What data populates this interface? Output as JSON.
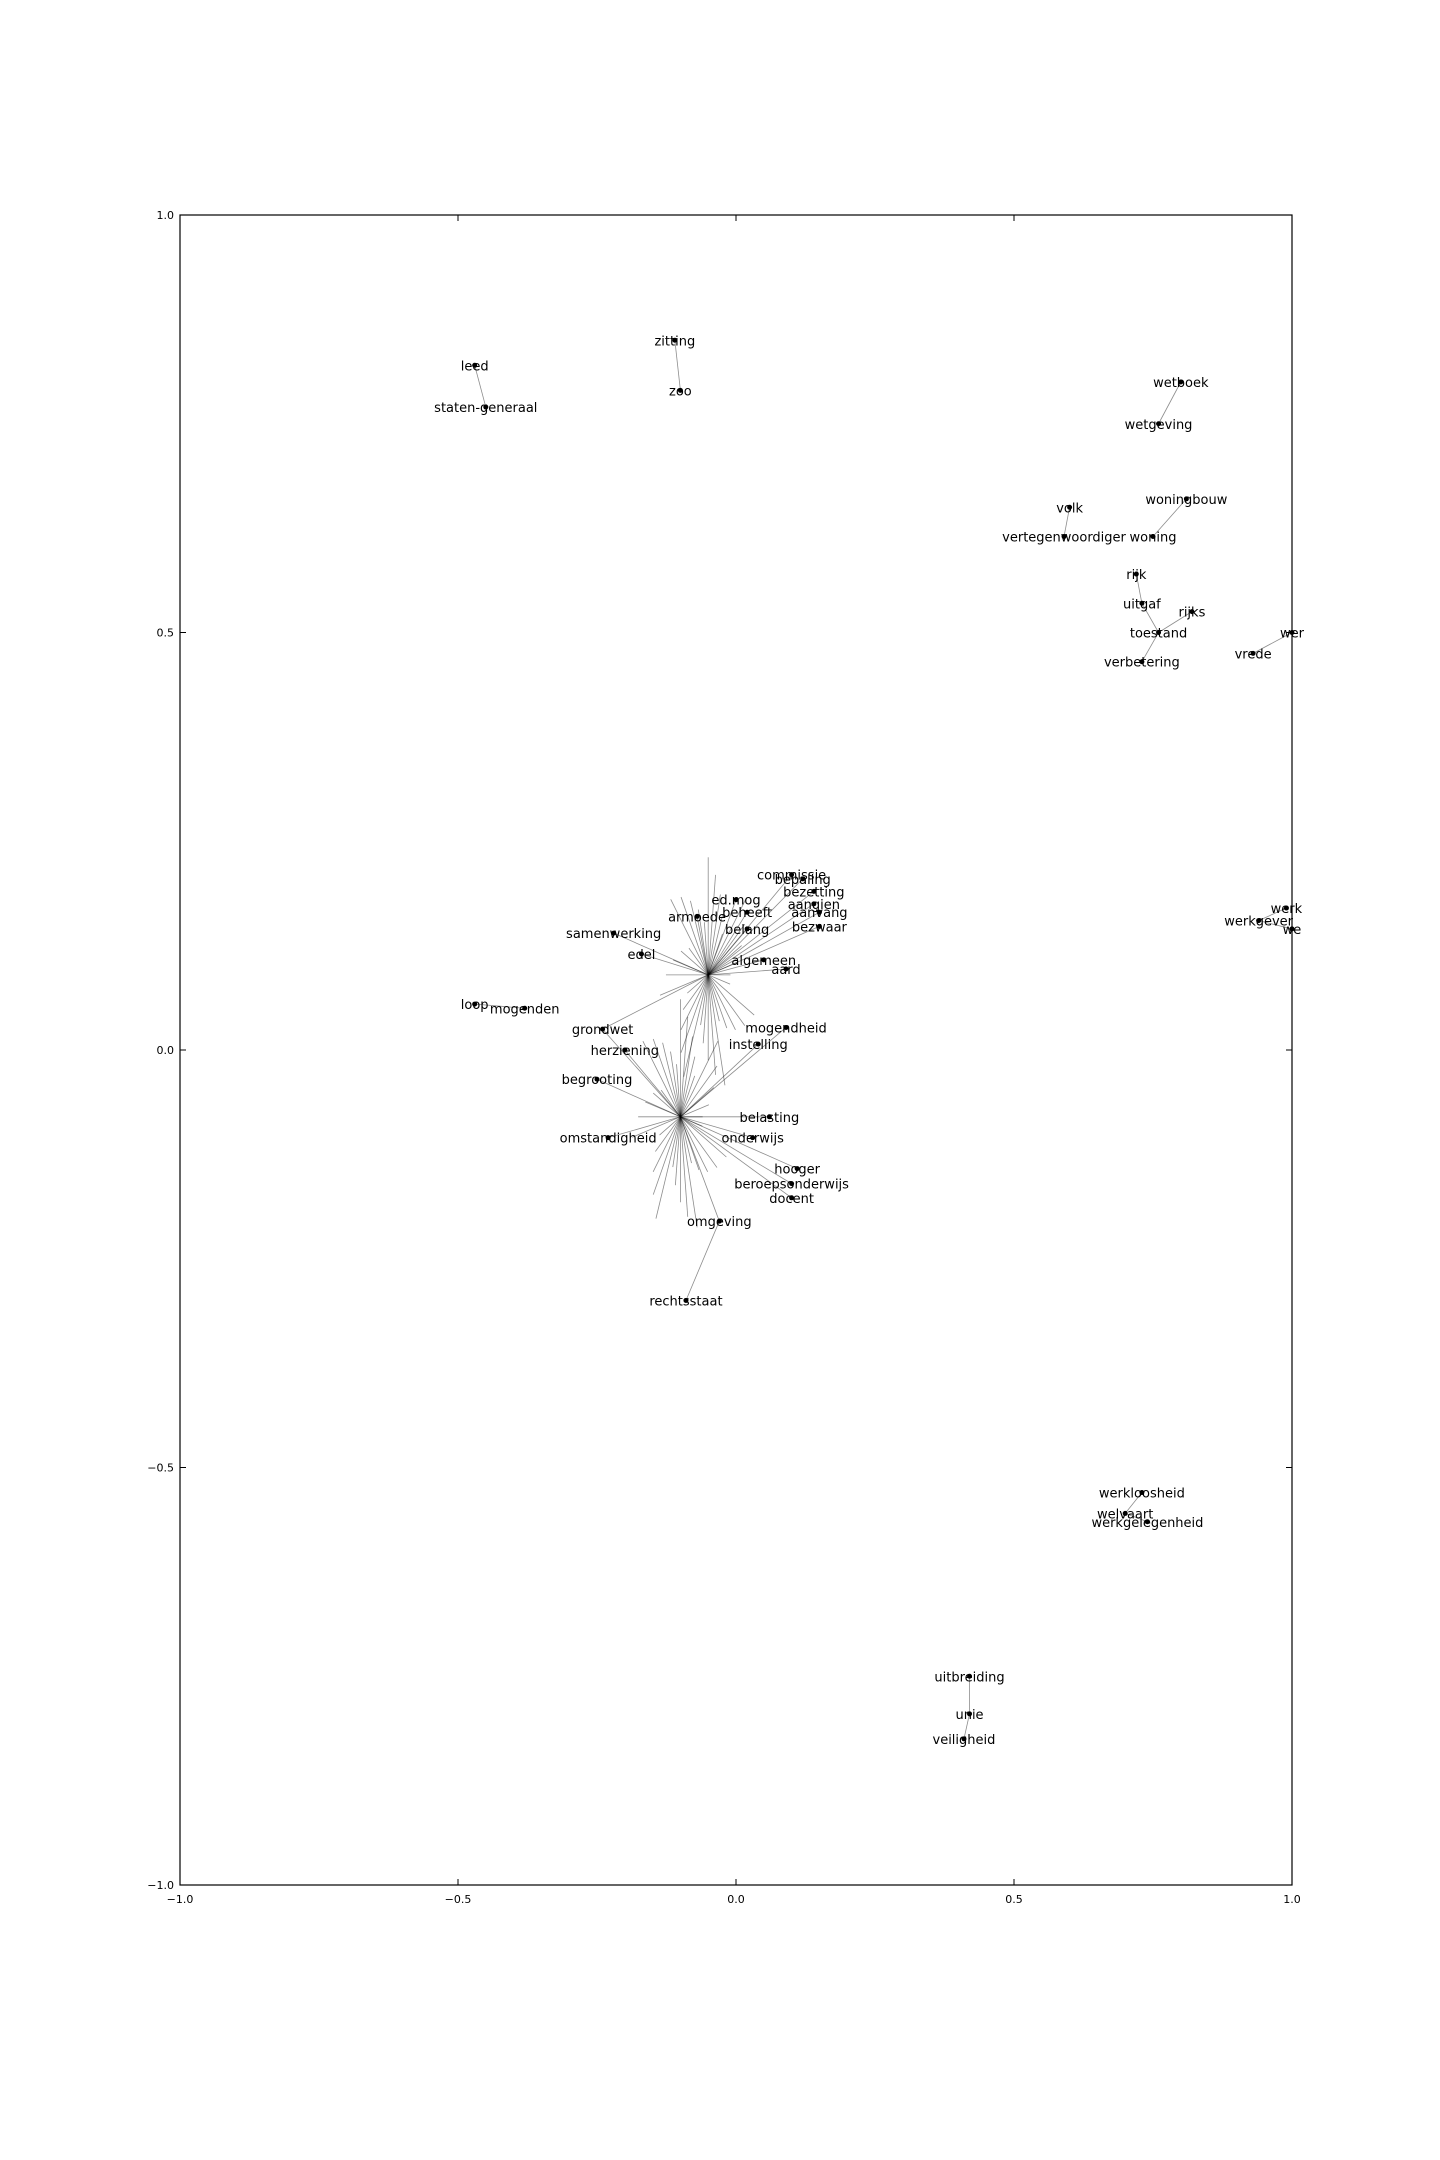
{
  "chart_data": {
    "type": "scatter",
    "title": "",
    "xlabel": "",
    "ylabel": "",
    "xlim": [
      -1.0,
      1.0
    ],
    "ylim": [
      -1.0,
      1.0
    ],
    "grid": false,
    "x_ticks": [
      {
        "value": -1.0,
        "label": "−1.0"
      },
      {
        "value": -0.5,
        "label": "−0.5"
      },
      {
        "value": 0.0,
        "label": "0.0"
      },
      {
        "value": 0.5,
        "label": "0.5"
      },
      {
        "value": 1.0,
        "label": "1.0"
      }
    ],
    "y_ticks": [
      {
        "value": -1.0,
        "label": "−1.0"
      },
      {
        "value": -0.5,
        "label": "−0.5"
      },
      {
        "value": 0.0,
        "label": "0.0"
      },
      {
        "value": 0.5,
        "label": "0.5"
      },
      {
        "value": 1.0,
        "label": "1.0"
      }
    ],
    "points": [
      {
        "label": "zitting",
        "x": -0.11,
        "y": 0.85
      },
      {
        "label": "zoo",
        "x": -0.1,
        "y": 0.79
      },
      {
        "label": "leed",
        "x": -0.47,
        "y": 0.82
      },
      {
        "label": "staten-generaal",
        "x": -0.45,
        "y": 0.77
      },
      {
        "label": "wetboek",
        "x": 0.8,
        "y": 0.8
      },
      {
        "label": "wetgeving",
        "x": 0.76,
        "y": 0.75
      },
      {
        "label": "woningbouw",
        "x": 0.81,
        "y": 0.66
      },
      {
        "label": "woning",
        "x": 0.75,
        "y": 0.615
      },
      {
        "label": "volk",
        "x": 0.6,
        "y": 0.65
      },
      {
        "label": "vertegenwoordiger",
        "x": 0.59,
        "y": 0.615
      },
      {
        "label": "rijk",
        "x": 0.72,
        "y": 0.57
      },
      {
        "label": "uitgaf",
        "x": 0.73,
        "y": 0.535
      },
      {
        "label": "rijks",
        "x": 0.82,
        "y": 0.525
      },
      {
        "label": "toestand",
        "x": 0.76,
        "y": 0.5
      },
      {
        "label": "verbetering",
        "x": 0.73,
        "y": 0.465
      },
      {
        "label": "vrede",
        "x": 0.93,
        "y": 0.475
      },
      {
        "label": "wer",
        "x": 1.0,
        "y": 0.5
      },
      {
        "label": "werk",
        "x": 0.99,
        "y": 0.17
      },
      {
        "label": "werkgever",
        "x": 0.94,
        "y": 0.155
      },
      {
        "label": "we",
        "x": 1.0,
        "y": 0.145
      },
      {
        "label": "samenwerking",
        "x": -0.22,
        "y": 0.14
      },
      {
        "label": "edel",
        "x": -0.17,
        "y": 0.115
      },
      {
        "label": "loop",
        "x": -0.47,
        "y": 0.055
      },
      {
        "label": "mogenden",
        "x": -0.38,
        "y": 0.05
      },
      {
        "label": "grondwet",
        "x": -0.24,
        "y": 0.025
      },
      {
        "label": "armoede",
        "x": -0.07,
        "y": 0.16
      },
      {
        "label": "beheeft",
        "x": 0.02,
        "y": 0.165
      },
      {
        "label": "ed.mog",
        "x": 0.0,
        "y": 0.18
      },
      {
        "label": "bezetting",
        "x": 0.14,
        "y": 0.19
      },
      {
        "label": "bepaling",
        "x": 0.12,
        "y": 0.205
      },
      {
        "label": "commissie",
        "x": 0.1,
        "y": 0.21
      },
      {
        "label": "aanvang",
        "x": 0.15,
        "y": 0.165
      },
      {
        "label": "aangien",
        "x": 0.14,
        "y": 0.175
      },
      {
        "label": "bezwaar",
        "x": 0.15,
        "y": 0.148
      },
      {
        "label": "belang",
        "x": 0.02,
        "y": 0.145
      },
      {
        "label": "algemeen",
        "x": 0.05,
        "y": 0.108
      },
      {
        "label": "aard",
        "x": 0.09,
        "y": 0.097
      },
      {
        "label": "mogendheid",
        "x": 0.09,
        "y": 0.027
      },
      {
        "label": "instelling",
        "x": 0.04,
        "y": 0.007
      },
      {
        "label": "herziening",
        "x": -0.2,
        "y": 0.0
      },
      {
        "label": "begrooting",
        "x": -0.25,
        "y": -0.035
      },
      {
        "label": "belasting",
        "x": 0.06,
        "y": -0.08
      },
      {
        "label": "onderwijs",
        "x": 0.03,
        "y": -0.105
      },
      {
        "label": "omstandigheid",
        "x": -0.23,
        "y": -0.105
      },
      {
        "label": "hooger",
        "x": 0.11,
        "y": -0.142
      },
      {
        "label": "beroepsonderwijs",
        "x": 0.1,
        "y": -0.16
      },
      {
        "label": "docent",
        "x": 0.1,
        "y": -0.177
      },
      {
        "label": "omgeving",
        "x": -0.03,
        "y": -0.205
      },
      {
        "label": "rechtsstaat",
        "x": -0.09,
        "y": -0.3
      },
      {
        "label": "werkloosheid",
        "x": 0.73,
        "y": -0.53
      },
      {
        "label": "welvaart",
        "x": 0.7,
        "y": -0.555
      },
      {
        "label": "werkgelegenheid",
        "x": 0.74,
        "y": -0.565
      },
      {
        "label": "uitbreiding",
        "x": 0.42,
        "y": -0.75
      },
      {
        "label": "unie",
        "x": 0.42,
        "y": -0.795
      },
      {
        "label": "veiligheid",
        "x": 0.41,
        "y": -0.825
      }
    ],
    "edges": [
      [
        "zitting",
        "zoo"
      ],
      [
        "leed",
        "staten-generaal"
      ],
      [
        "wetboek",
        "wetgeving"
      ],
      [
        "woningbouw",
        "woning"
      ],
      [
        "volk",
        "vertegenwoordiger"
      ],
      [
        "rijk",
        "uitgaf"
      ],
      [
        "uitgaf",
        "toestand"
      ],
      [
        "rijks",
        "toestand"
      ],
      [
        "toestand",
        "verbetering"
      ],
      [
        "vrede",
        "wer"
      ],
      [
        "werk",
        "werkgever"
      ],
      [
        "werkgever",
        "we"
      ],
      [
        "loop",
        "mogenden"
      ],
      [
        "werkloosheid",
        "welvaart"
      ],
      [
        "welvaart",
        "werkgelegenheid"
      ],
      [
        "uitbreiding",
        "unie"
      ],
      [
        "unie",
        "veiligheid"
      ],
      [
        "omgeving",
        "rechtsstaat"
      ]
    ],
    "hubs": [
      {
        "x": -0.1,
        "y": -0.08,
        "members": [
          "herziening",
          "begrooting",
          "omstandigheid",
          "belasting",
          "onderwijs",
          "hooger",
          "beroepsonderwijs",
          "docent",
          "omgeving",
          "grondwet",
          "mogendheid",
          "instelling"
        ]
      },
      {
        "x": -0.05,
        "y": 0.09,
        "members": [
          "samenwerking",
          "edel",
          "armoede",
          "beheeft",
          "ed.mog",
          "belang",
          "algemeen",
          "aard",
          "bezetting",
          "bepaling",
          "commissie",
          "aanvang",
          "aangien",
          "bezwaar",
          "grondwet"
        ]
      }
    ]
  }
}
